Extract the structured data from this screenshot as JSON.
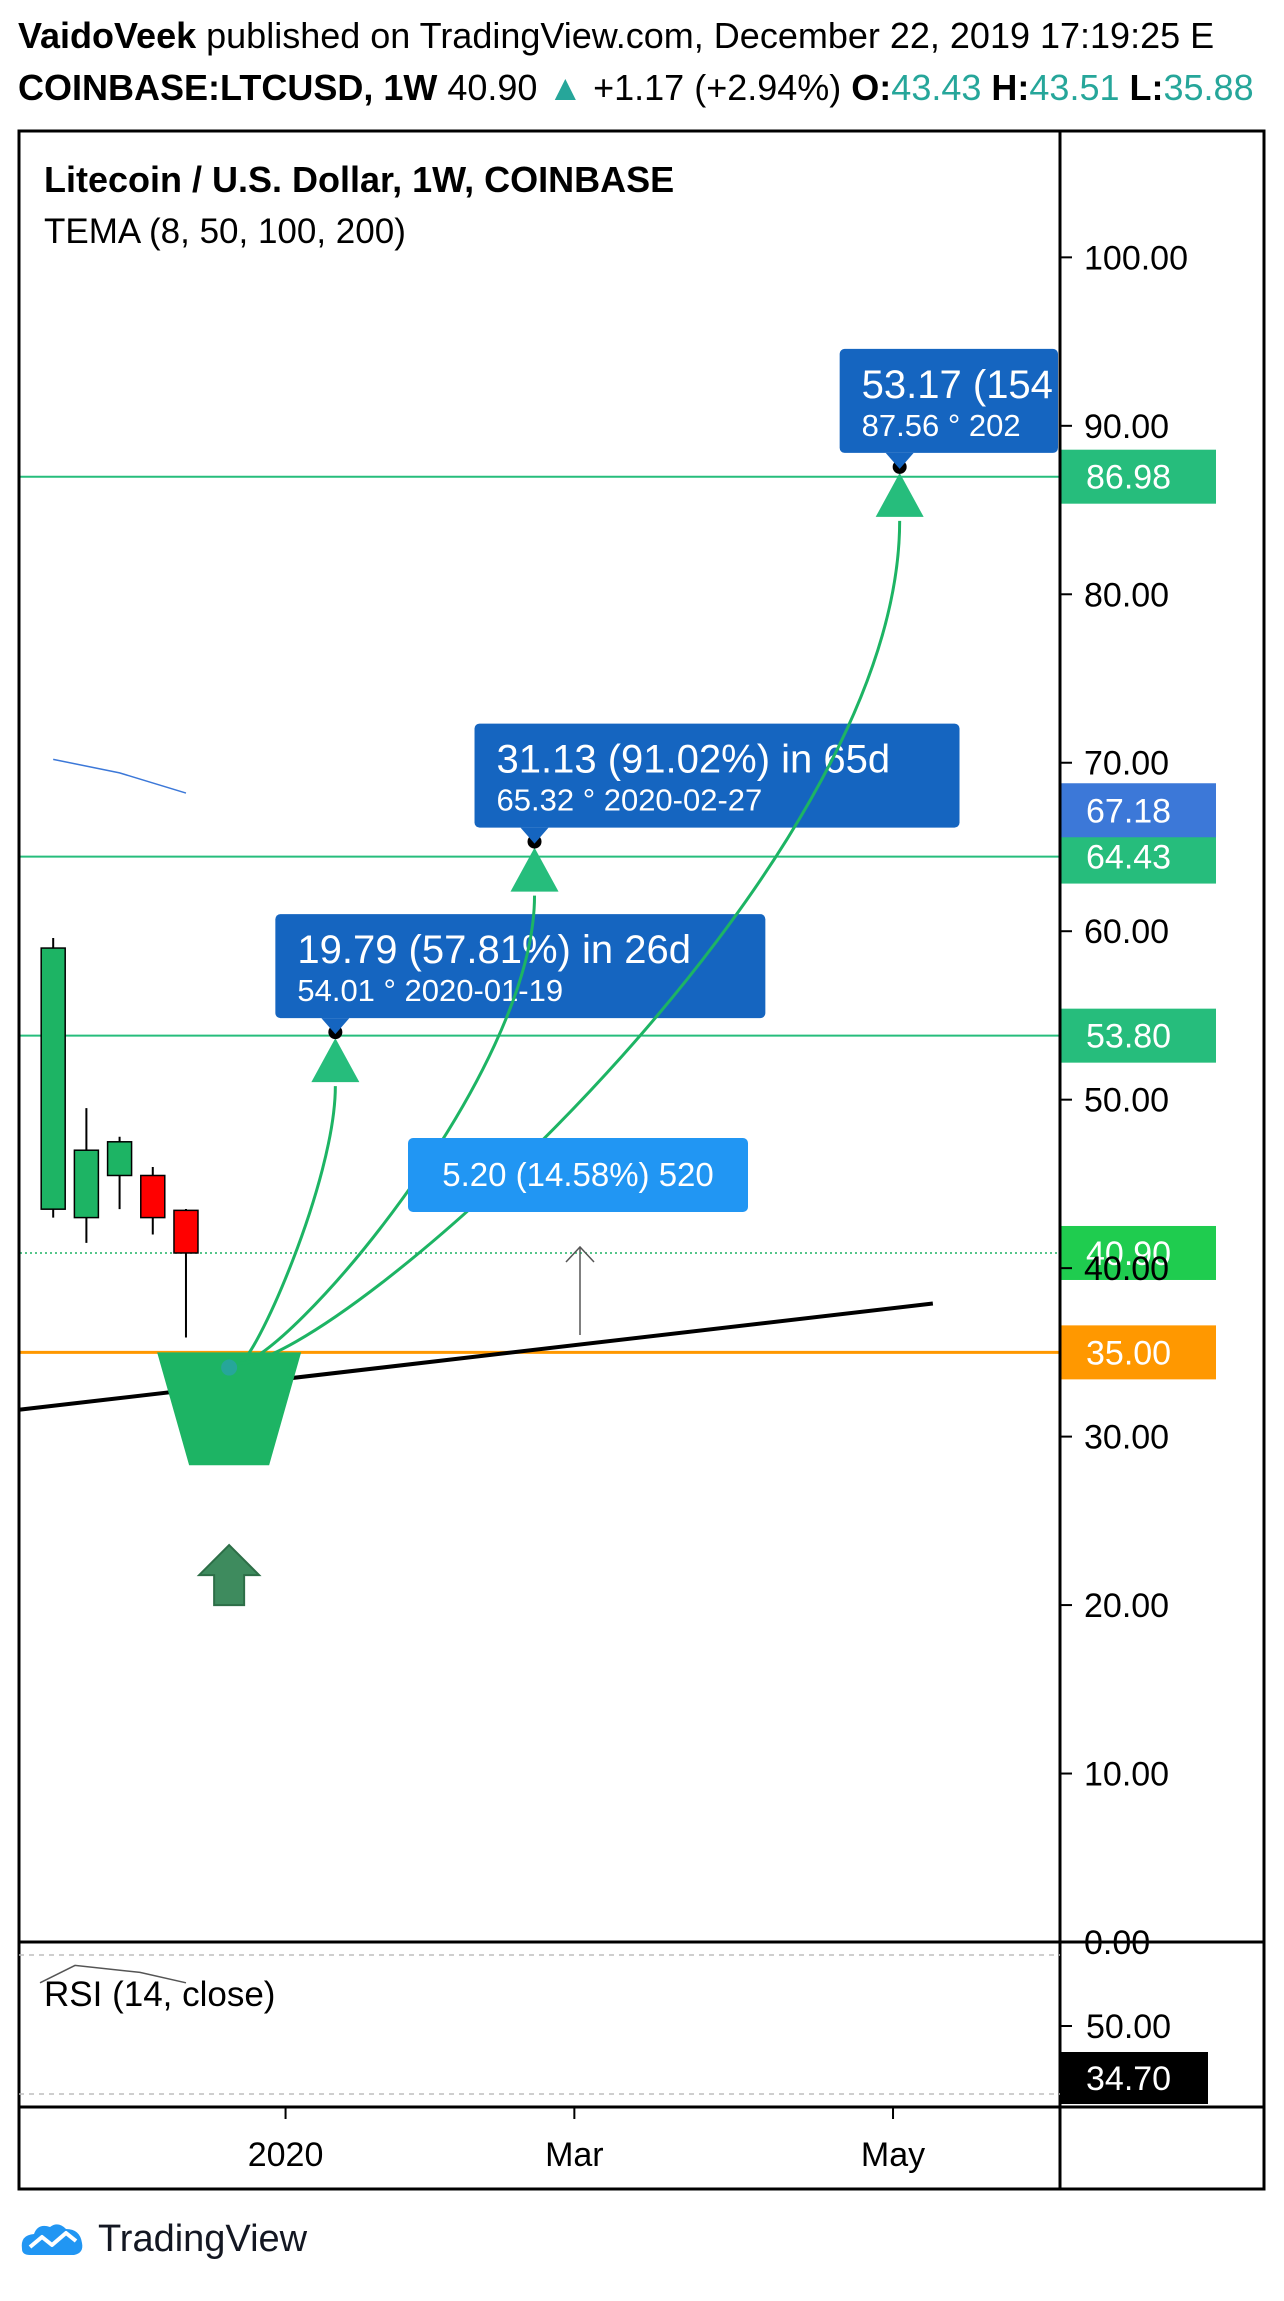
{
  "header": {
    "author": "VaidoVeek",
    "published_text": "published on TradingView.com, December 22, 2019 17:19:25 E",
    "symbol": "COINBASE:LTCUSD, 1W",
    "last": "40.90",
    "arrow": "▲",
    "change": "+1.17 (+2.94%)",
    "o_label": "O:",
    "o_value": "43.43",
    "h_label": "H:",
    "h_value": "43.51",
    "l_label": "L:",
    "l_value": "35.88"
  },
  "legend": {
    "title": "Litecoin / U.S. Dollar, 1W, COINBASE",
    "indicator": "TEMA (8, 50, 100, 200)"
  },
  "rsi": {
    "label": "RSI (14, close)",
    "tick": "50.00",
    "value": "34.70",
    "line": [
      52,
      57,
      55,
      52
    ]
  },
  "footer": {
    "brand": "TradingView"
  },
  "colors": {
    "bull": "#1db464",
    "bear": "#ff0000",
    "green_label": "#26bd7c",
    "blue_label": "#1565c0",
    "blue_alt": "#2196f3",
    "orange": "#ff9800",
    "tema": "#3c78d8",
    "axis": "#000000"
  },
  "chart_data": {
    "type": "candlestick",
    "y_axis": {
      "ticks": [
        0,
        10,
        20,
        30,
        40,
        50,
        60,
        70,
        80,
        90,
        100
      ],
      "tick_labels": [
        "0.00",
        "10.00",
        "20.00",
        "30.00",
        "40.00",
        "50.00",
        "60.00",
        "70.00",
        "80.00",
        "90.00",
        "100.00"
      ],
      "range": [
        0,
        107.5
      ]
    },
    "x_axis": {
      "labels": [
        {
          "text": "2020",
          "week": 7.5
        },
        {
          "text": "Mar",
          "week": 16.2
        },
        {
          "text": "May",
          "week": 25.8
        }
      ],
      "range": [
        -0.5,
        30.8
      ]
    },
    "candles": [
      {
        "o": 43.5,
        "h": 59.6,
        "l": 43.0,
        "c": 59.0
      },
      {
        "o": 43.0,
        "h": 49.5,
        "l": 41.5,
        "c": 47.0
      },
      {
        "o": 45.5,
        "h": 47.8,
        "l": 43.5,
        "c": 47.5
      },
      {
        "o": 45.5,
        "h": 46.0,
        "l": 42.0,
        "c": 43.0
      },
      {
        "o": 43.43,
        "h": 43.51,
        "l": 35.88,
        "c": 40.9
      }
    ],
    "tema_line": [
      {
        "week": 0.5,
        "value": 70.2
      },
      {
        "week": 2.5,
        "value": 69.4
      },
      {
        "week": 4.5,
        "value": 68.2
      }
    ],
    "horizontal_levels": [
      {
        "value": 86.98,
        "label": "86.98",
        "style": "green"
      },
      {
        "value": 64.43,
        "label": "64.43",
        "style": "green"
      },
      {
        "value": 53.8,
        "label": "53.80",
        "style": "green"
      },
      {
        "value": 40.9,
        "label": "40.90",
        "style": "green-dotted"
      },
      {
        "value": 35.0,
        "label": "35.00",
        "style": "orange"
      }
    ],
    "price_labels": [
      {
        "value": 67.18,
        "label": "67.18",
        "style": "blue"
      }
    ],
    "trendline": {
      "from": {
        "week": -0.5,
        "value": 31.6
      },
      "to": {
        "week": 27.0,
        "value": 37.9
      }
    },
    "targets": [
      {
        "week": 9.0,
        "value": 54.01,
        "line1": "19.79 (57.81%)   in 26d",
        "line2": "54.01  °  2020-01-19"
      },
      {
        "week": 15.0,
        "value": 65.32,
        "line1": "31.13 (91.02%)   in 65d",
        "line2": "65.32  °  2020-02-27"
      },
      {
        "week": 26.0,
        "value": 87.56,
        "line1": "53.17 (154",
        "line2": "87.56  °  202"
      }
    ],
    "measure": {
      "label": "5.20 (14.58%) 520"
    },
    "pointer_origin": {
      "week": 5.8,
      "value": 34.1
    }
  }
}
